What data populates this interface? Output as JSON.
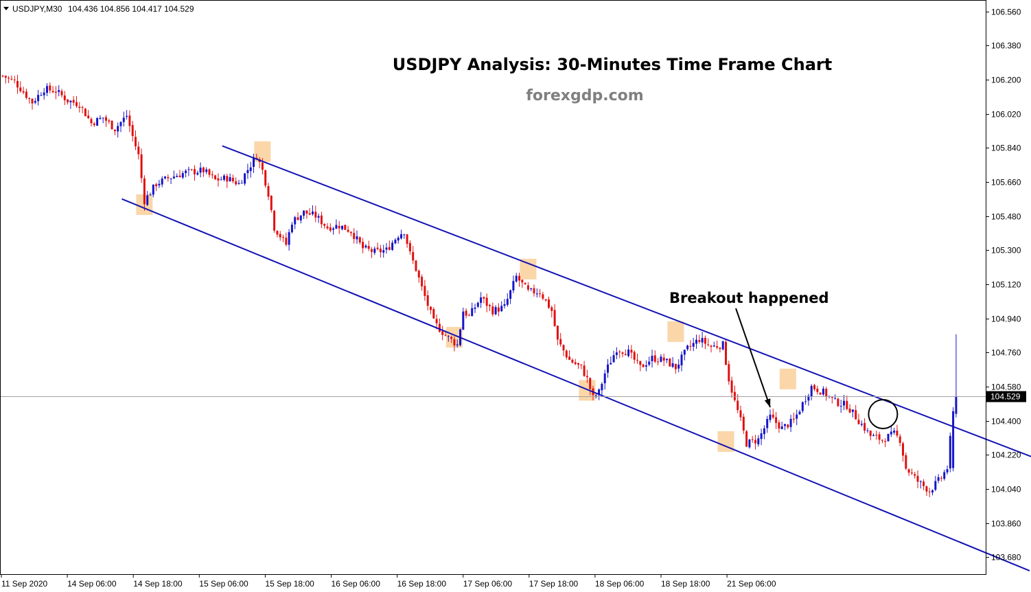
{
  "header": {
    "symbol": "USDJPY,M30",
    "ohlc": "104.436 104.856 104.417 104.529"
  },
  "colors": {
    "bull": "#1515c8",
    "bear": "#e01010",
    "channel": "#1212b4",
    "highlight": "#f9cf9a",
    "price_tag_bg": "#000000"
  },
  "chart_data": {
    "type": "candlestick",
    "title": "USDJPY Analysis: 30-Minutes Time Frame Chart",
    "subtitle": "forexgdp.com",
    "y_range": [
      103.59,
      106.62
    ],
    "y_ticks": [
      "106.560",
      "106.380",
      "106.200",
      "106.020",
      "105.840",
      "105.660",
      "105.480",
      "105.300",
      "105.120",
      "104.940",
      "104.760",
      "104.580",
      "104.400",
      "104.220",
      "104.040",
      "103.860",
      "103.680"
    ],
    "x_ticks": [
      "11 Sep 2020",
      "14 Sep 06:00",
      "14 Sep 18:00",
      "15 Sep 06:00",
      "15 Sep 18:00",
      "16 Sep 06:00",
      "16 Sep 18:00",
      "17 Sep 06:00",
      "17 Sep 18:00",
      "18 Sep 06:00",
      "18 Sep 18:00",
      "21 Sep 06:00"
    ],
    "current_price": "104.529",
    "close_path": [
      [
        0,
        106.22
      ],
      [
        4,
        106.19
      ],
      [
        10,
        106.08
      ],
      [
        14,
        106.15
      ],
      [
        18,
        106.14
      ],
      [
        22,
        106.09
      ],
      [
        26,
        106.07
      ],
      [
        30,
        105.97
      ],
      [
        34,
        106.0
      ],
      [
        38,
        105.94
      ],
      [
        42,
        106.01
      ],
      [
        44,
        105.9
      ],
      [
        46,
        105.8
      ],
      [
        48,
        105.56
      ],
      [
        52,
        105.65
      ],
      [
        56,
        105.68
      ],
      [
        62,
        105.71
      ],
      [
        68,
        105.72
      ],
      [
        72,
        105.67
      ],
      [
        76,
        105.68
      ],
      [
        80,
        105.65
      ],
      [
        84,
        105.75
      ],
      [
        86,
        105.8
      ],
      [
        88,
        105.72
      ],
      [
        90,
        105.6
      ],
      [
        92,
        105.42
      ],
      [
        96,
        105.33
      ],
      [
        98,
        105.45
      ],
      [
        102,
        105.5
      ],
      [
        106,
        105.48
      ],
      [
        110,
        105.42
      ],
      [
        114,
        105.43
      ],
      [
        118,
        105.4
      ],
      [
        122,
        105.31
      ],
      [
        126,
        105.29
      ],
      [
        130,
        105.3
      ],
      [
        134,
        105.38
      ],
      [
        136,
        105.4
      ],
      [
        138,
        105.28
      ],
      [
        140,
        105.2
      ],
      [
        142,
        105.1
      ],
      [
        146,
        104.92
      ],
      [
        150,
        104.85
      ],
      [
        154,
        104.8
      ],
      [
        156,
        104.98
      ],
      [
        158,
        104.95
      ],
      [
        162,
        105.05
      ],
      [
        166,
        104.98
      ],
      [
        170,
        105.0
      ],
      [
        174,
        105.16
      ],
      [
        178,
        105.08
      ],
      [
        182,
        105.08
      ],
      [
        186,
        104.98
      ],
      [
        188,
        104.82
      ],
      [
        192,
        104.72
      ],
      [
        196,
        104.68
      ],
      [
        198,
        104.62
      ],
      [
        200,
        104.52
      ],
      [
        202,
        104.55
      ],
      [
        204,
        104.65
      ],
      [
        208,
        104.78
      ],
      [
        212,
        104.76
      ],
      [
        216,
        104.68
      ],
      [
        220,
        104.73
      ],
      [
        224,
        104.72
      ],
      [
        228,
        104.68
      ],
      [
        232,
        104.78
      ],
      [
        236,
        104.83
      ],
      [
        240,
        104.79
      ],
      [
        244,
        104.8
      ],
      [
        246,
        104.62
      ],
      [
        248,
        104.5
      ],
      [
        250,
        104.4
      ],
      [
        252,
        104.28
      ],
      [
        256,
        104.3
      ],
      [
        260,
        104.42
      ],
      [
        264,
        104.36
      ],
      [
        268,
        104.4
      ],
      [
        272,
        104.52
      ],
      [
        274,
        104.58
      ],
      [
        278,
        104.55
      ],
      [
        282,
        104.5
      ],
      [
        286,
        104.48
      ],
      [
        290,
        104.4
      ],
      [
        294,
        104.32
      ],
      [
        298,
        104.3
      ],
      [
        302,
        104.33
      ],
      [
        304,
        104.3
      ],
      [
        306,
        104.15
      ],
      [
        310,
        104.08
      ],
      [
        314,
        104.03
      ],
      [
        318,
        104.1
      ],
      [
        320,
        104.15
      ],
      [
        322,
        104.45
      ],
      [
        323,
        104.529
      ]
    ],
    "channel": {
      "upper": {
        "from": [
          86,
          105.85
        ],
        "to": [
          400,
          103.87
        ]
      },
      "lower": {
        "from": [
          45,
          105.57
        ],
        "to": [
          340,
          103.608
        ]
      }
    },
    "highlights": [
      [
        48,
        105.54
      ],
      [
        88,
        105.82
      ],
      [
        153,
        104.84
      ],
      [
        178,
        105.2
      ],
      [
        198,
        104.56
      ],
      [
        228,
        104.87
      ],
      [
        245,
        104.29
      ],
      [
        266,
        104.62
      ]
    ],
    "breakout_marker": [
      298,
      104.42
    ],
    "annotation": {
      "text": "Breakout happened",
      "arrow_from": [
        1072,
        449
      ],
      "arrow_to": [
        1122,
        593
      ]
    }
  }
}
